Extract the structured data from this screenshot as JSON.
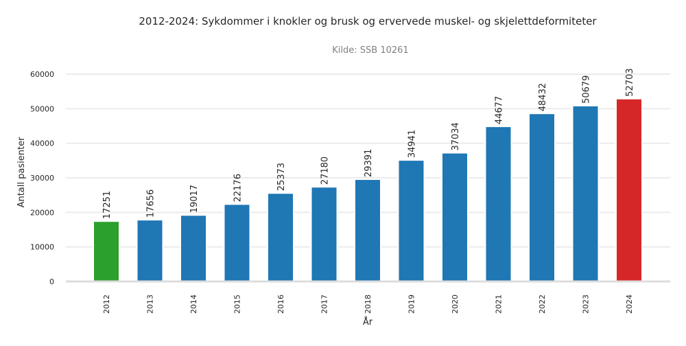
{
  "chart_data": {
    "type": "bar",
    "title": "2012-2024: Sykdommer i knokler og brusk og ervervede muskel- og skjelettdeformiteter",
    "subtitle": "Kilde: SSB 10261",
    "xlabel": "År",
    "ylabel": "Antall pasienter",
    "categories": [
      "2012",
      "2013",
      "2014",
      "2015",
      "2016",
      "2017",
      "2018",
      "2019",
      "2020",
      "2021",
      "2022",
      "2023",
      "2024"
    ],
    "values": [
      17251,
      17656,
      19017,
      22176,
      25373,
      27180,
      29391,
      34941,
      37034,
      44677,
      48432,
      50679,
      52703
    ],
    "data_labels": [
      "17251",
      "17656",
      "19017",
      "22176",
      "25373",
      "27180",
      "29391",
      "34941",
      "37034",
      "44677",
      "48432",
      "50679",
      "52703"
    ],
    "ylim": [
      0,
      60000
    ],
    "yticks": [
      "0",
      "10000",
      "20000",
      "30000",
      "40000",
      "50000",
      "60000"
    ],
    "grid": true,
    "colors": {
      "default": "#1f77b4",
      "first": "#2ca02c",
      "last": "#d62728",
      "grid": "#ebebeb",
      "axis": "#dddddd",
      "text": "#262626",
      "subtitle": "#808080"
    }
  }
}
